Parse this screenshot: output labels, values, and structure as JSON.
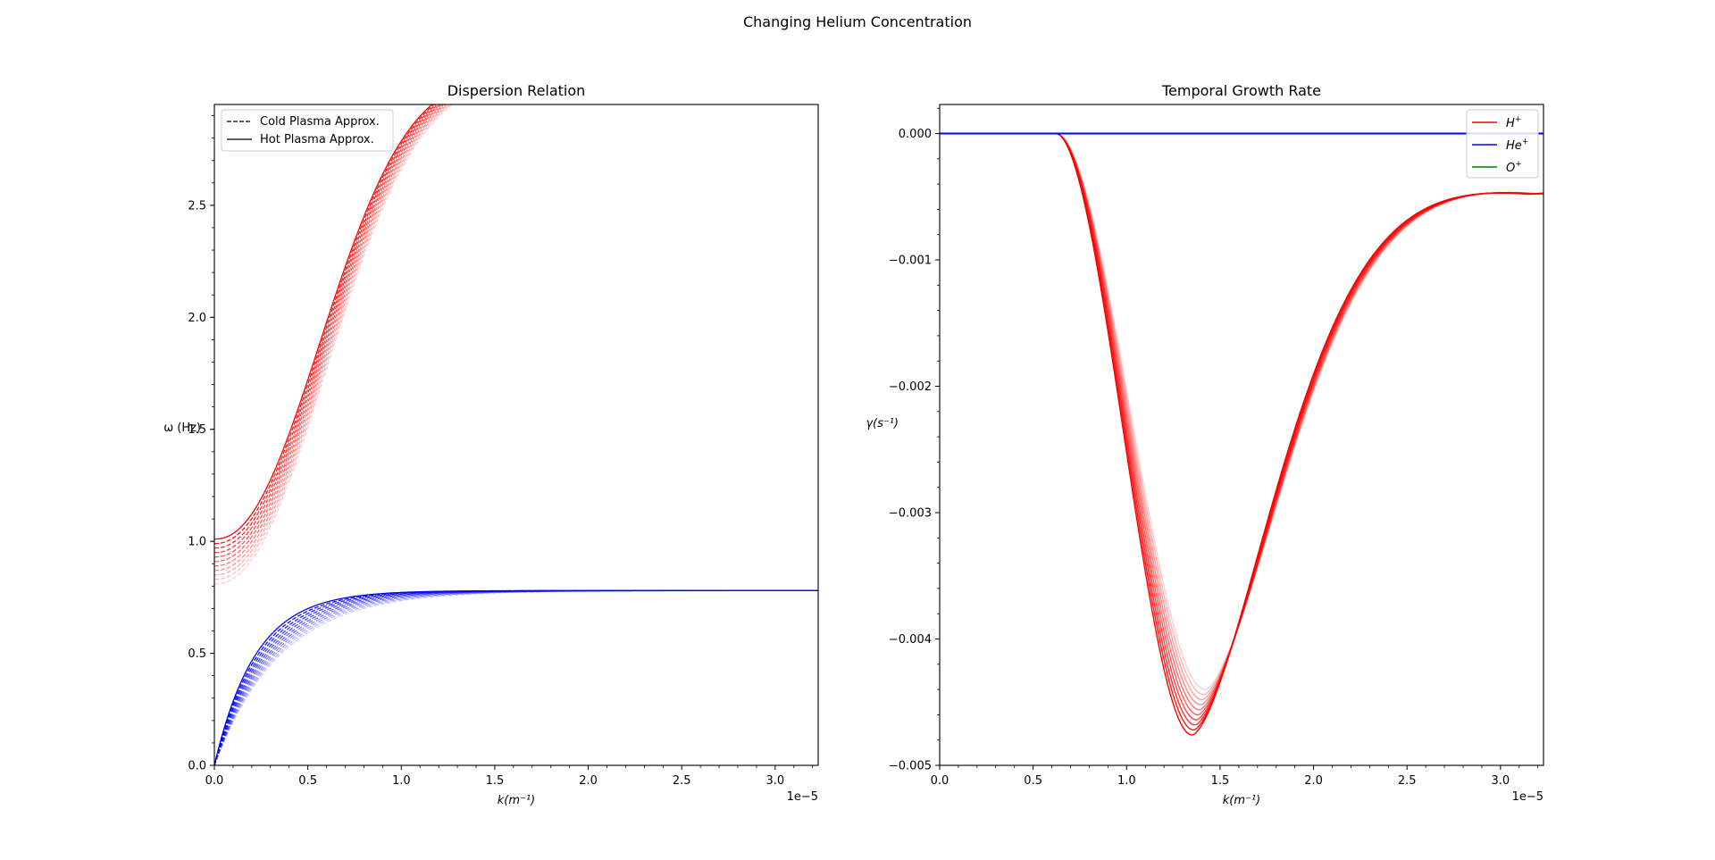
{
  "figure": {
    "suptitle": "Changing Helium Concentration"
  },
  "chart_data": [
    {
      "type": "line",
      "title": "Dispersion Relation",
      "xlabel": "k(m⁻¹)",
      "ylabel": "ω (Hz)",
      "x_offset_label": "1e−5",
      "xlim": [
        0,
        3.23
      ],
      "ylim": [
        0,
        2.95
      ],
      "xticks": [
        0.0,
        0.5,
        1.0,
        1.5,
        2.0,
        2.5,
        3.0
      ],
      "xticklabels": [
        "0.0",
        "0.5",
        "1.0",
        "1.5",
        "2.0",
        "2.5",
        "3.0"
      ],
      "yticks": [
        0.0,
        0.5,
        1.0,
        1.5,
        2.0,
        2.5
      ],
      "yticklabels": [
        "0.0",
        "0.5",
        "1.0",
        "1.5",
        "2.0",
        "2.5"
      ],
      "legend": {
        "position": "upper-left",
        "entries": [
          {
            "label": "Cold Plasma Approx.",
            "style": "dashed",
            "color": "#000000"
          },
          {
            "label": "Hot Plasma Approx.",
            "style": "solid",
            "color": "#000000"
          }
        ]
      },
      "families": [
        {
          "name": "",
          "color": "#ff0000",
          "start_values": [
            0.81,
            0.83,
            0.85,
            0.87,
            0.89,
            0.91,
            0.93,
            0.95,
            0.97,
            0.99,
            1.01
          ],
          "end_value": 2.87,
          "mid_k": [
            0.7,
            0.74
          ]
        },
        {
          "name": "",
          "color": "#0000ff",
          "start_values": [
            0.0
          ],
          "end_value": 0.78,
          "rise_k": [
            0.22,
            0.35
          ]
        }
      ],
      "grid": false
    },
    {
      "type": "line",
      "title": "Temporal Growth Rate",
      "xlabel": "k(m⁻¹)",
      "ylabel": "γ(s⁻¹)",
      "x_offset_label": "1e−5",
      "xlim": [
        0,
        3.23
      ],
      "ylim": [
        -0.005,
        0.00023
      ],
      "xticks": [
        0.0,
        0.5,
        1.0,
        1.5,
        2.0,
        2.5,
        3.0
      ],
      "xticklabels": [
        "0.0",
        "0.5",
        "1.0",
        "1.5",
        "2.0",
        "2.5",
        "3.0"
      ],
      "yticks": [
        0.0,
        -0.001,
        -0.002,
        -0.003,
        -0.004,
        -0.005
      ],
      "yticklabels": [
        "0.000",
        "−0.001",
        "−0.002",
        "−0.003",
        "−0.004",
        "−0.005"
      ],
      "legend": {
        "position": "upper-right",
        "entries": [
          {
            "label_base": "H",
            "label_sup": "+",
            "color": "#ff0000"
          },
          {
            "label_base": "He",
            "label_sup": "+",
            "color": "#0000ff"
          },
          {
            "label_base": "O",
            "label_sup": "+",
            "color": "#008000"
          }
        ]
      },
      "families": [
        {
          "name": "H+",
          "color": "#ff0000",
          "min_values": [
            -0.0044,
            -0.00444,
            -0.00448,
            -0.00452,
            -0.00456,
            -0.0046,
            -0.00464,
            -0.00468,
            -0.00472,
            -0.00476
          ],
          "min_k": [
            1.42,
            1.35
          ],
          "end_value": -0.00045
        },
        {
          "name": "He+",
          "color": "#0000ff",
          "constant": 0.0
        }
      ],
      "grid": false
    }
  ]
}
